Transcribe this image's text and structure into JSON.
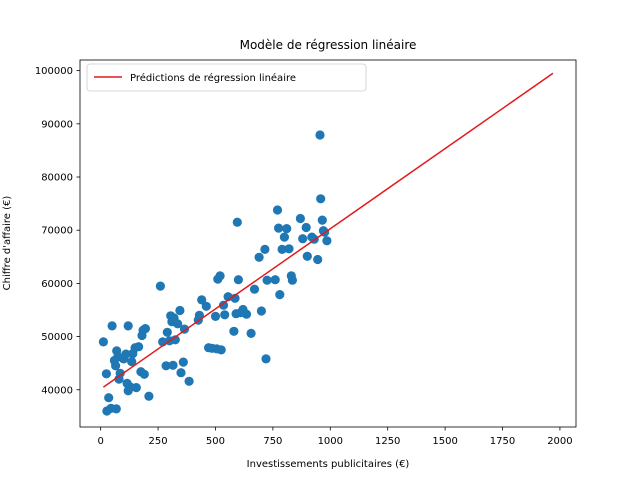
{
  "chart_data": {
    "type": "scatter",
    "title": "Modèle de régression linéaire",
    "xlabel": "Investissements publicitaires (€)",
    "ylabel": "Chiffre d'affaire (€)",
    "xlim": [
      -90,
      2070
    ],
    "ylim": [
      33000,
      102000
    ],
    "xticks": [
      0,
      250,
      500,
      750,
      1000,
      1250,
      1500,
      1750,
      2000
    ],
    "yticks": [
      40000,
      50000,
      60000,
      70000,
      80000,
      90000,
      100000
    ],
    "legend": {
      "position": "top-left",
      "entries": [
        "Prédictions de régression linéaire"
      ]
    },
    "grid": false,
    "colors": {
      "points": "#1f77b4",
      "line": "#e41a1c"
    },
    "series": [
      {
        "kind": "scatter",
        "points": [
          [
            12,
            49000
          ],
          [
            25,
            43000
          ],
          [
            27,
            36000
          ],
          [
            35,
            38500
          ],
          [
            45,
            36500
          ],
          [
            50,
            52000
          ],
          [
            60,
            45500
          ],
          [
            65,
            44500
          ],
          [
            68,
            36400
          ],
          [
            70,
            47300
          ],
          [
            75,
            46200
          ],
          [
            80,
            42000
          ],
          [
            85,
            43100
          ],
          [
            95,
            46000
          ],
          [
            100,
            45800
          ],
          [
            110,
            46700
          ],
          [
            115,
            41200
          ],
          [
            120,
            52000
          ],
          [
            120,
            39800
          ],
          [
            130,
            40500
          ],
          [
            135,
            45300
          ],
          [
            140,
            46800
          ],
          [
            150,
            47900
          ],
          [
            155,
            40400
          ],
          [
            165,
            48100
          ],
          [
            175,
            43400
          ],
          [
            180,
            50200
          ],
          [
            185,
            51200
          ],
          [
            190,
            42900
          ],
          [
            195,
            51500
          ],
          [
            210,
            38800
          ],
          [
            260,
            59500
          ],
          [
            270,
            49000
          ],
          [
            285,
            44500
          ],
          [
            290,
            50800
          ],
          [
            300,
            49200
          ],
          [
            305,
            53900
          ],
          [
            310,
            52800
          ],
          [
            315,
            44600
          ],
          [
            320,
            53500
          ],
          [
            325,
            49400
          ],
          [
            335,
            52400
          ],
          [
            345,
            54900
          ],
          [
            350,
            43200
          ],
          [
            360,
            45200
          ],
          [
            365,
            51400
          ],
          [
            385,
            41600
          ],
          [
            425,
            53100
          ],
          [
            430,
            54000
          ],
          [
            440,
            56900
          ],
          [
            460,
            55700
          ],
          [
            470,
            47900
          ],
          [
            485,
            47800
          ],
          [
            500,
            53800
          ],
          [
            505,
            47700
          ],
          [
            510,
            60800
          ],
          [
            520,
            61400
          ],
          [
            525,
            47500
          ],
          [
            535,
            55900
          ],
          [
            540,
            54100
          ],
          [
            555,
            57500
          ],
          [
            580,
            51000
          ],
          [
            585,
            57200
          ],
          [
            590,
            54300
          ],
          [
            595,
            71500
          ],
          [
            600,
            60700
          ],
          [
            610,
            54500
          ],
          [
            620,
            55100
          ],
          [
            635,
            54200
          ],
          [
            655,
            50600
          ],
          [
            670,
            58900
          ],
          [
            690,
            64900
          ],
          [
            700,
            54800
          ],
          [
            715,
            66400
          ],
          [
            720,
            45800
          ],
          [
            725,
            60600
          ],
          [
            760,
            60700
          ],
          [
            770,
            73800
          ],
          [
            775,
            70400
          ],
          [
            780,
            57900
          ],
          [
            790,
            66400
          ],
          [
            800,
            68700
          ],
          [
            810,
            70300
          ],
          [
            820,
            66500
          ],
          [
            830,
            61400
          ],
          [
            835,
            60600
          ],
          [
            870,
            72200
          ],
          [
            880,
            68400
          ],
          [
            895,
            70500
          ],
          [
            900,
            65100
          ],
          [
            920,
            68700
          ],
          [
            930,
            68300
          ],
          [
            945,
            64500
          ],
          [
            955,
            87900
          ],
          [
            958,
            75900
          ],
          [
            965,
            71900
          ],
          [
            970,
            69900
          ],
          [
            975,
            69600
          ],
          [
            985,
            68000
          ]
        ]
      },
      {
        "kind": "line",
        "name": "Prédictions de régression linéaire",
        "points": [
          [
            12,
            40500
          ],
          [
            1970,
            99500
          ]
        ]
      }
    ]
  }
}
